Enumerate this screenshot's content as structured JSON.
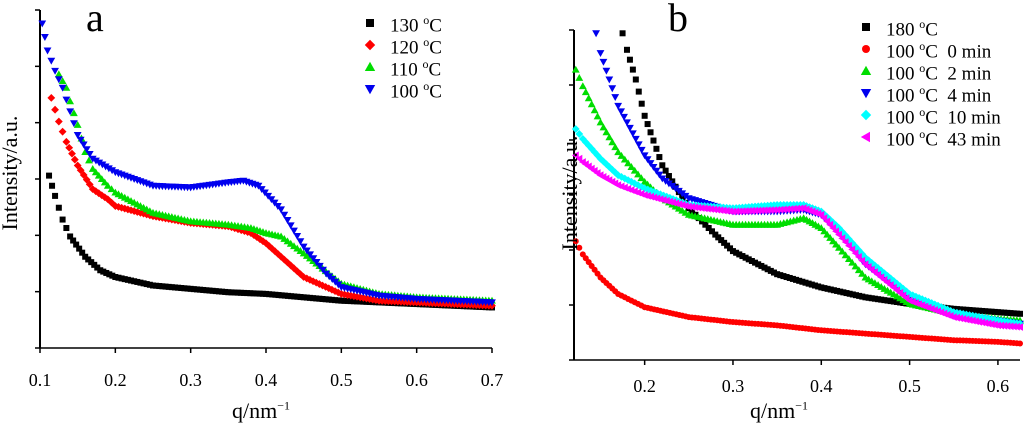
{
  "chart_data": [
    {
      "panel": "a",
      "type": "scatter",
      "title": "a",
      "xlabel": "q/nm",
      "xlabel_sup": "−1",
      "ylabel": "Intensity/a.u.",
      "xlim": [
        0.1,
        0.7
      ],
      "ylim": [
        0,
        100
      ],
      "xticks": [
        "0.1",
        "0.2",
        "0.3",
        "0.4",
        "0.5",
        "0.6",
        "0.7"
      ],
      "xtick_values": [
        0.1,
        0.2,
        0.3,
        0.4,
        0.5,
        0.6,
        0.7
      ],
      "legend_position": "top-right",
      "series": [
        {
          "name": "130 °C",
          "legend_text": "130 ",
          "color": "#000000",
          "marker": "square",
          "points": [
            [
              0.112,
              51
            ],
            [
              0.12,
              45
            ],
            [
              0.13,
              38
            ],
            [
              0.14,
              33
            ],
            [
              0.16,
              27
            ],
            [
              0.18,
              23
            ],
            [
              0.2,
              21
            ],
            [
              0.25,
              18.5
            ],
            [
              0.3,
              17.5
            ],
            [
              0.35,
              16.5
            ],
            [
              0.4,
              16
            ],
            [
              0.45,
              15
            ],
            [
              0.5,
              14
            ],
            [
              0.55,
              13.5
            ],
            [
              0.6,
              13
            ],
            [
              0.65,
              12.5
            ],
            [
              0.7,
              12
            ]
          ]
        },
        {
          "name": "120 °C",
          "legend_text": "120 ",
          "color": "#ff0000",
          "marker": "diamond",
          "points": [
            [
              0.115,
              74
            ],
            [
              0.125,
              67
            ],
            [
              0.135,
              61
            ],
            [
              0.15,
              54
            ],
            [
              0.17,
              47
            ],
            [
              0.19,
              44
            ],
            [
              0.2,
              42
            ],
            [
              0.25,
              39
            ],
            [
              0.3,
              37
            ],
            [
              0.35,
              36
            ],
            [
              0.38,
              34
            ],
            [
              0.4,
              31
            ],
            [
              0.42,
              27
            ],
            [
              0.45,
              21
            ],
            [
              0.5,
              16
            ],
            [
              0.55,
              14
            ],
            [
              0.6,
              13.5
            ],
            [
              0.65,
              13
            ],
            [
              0.7,
              12.5
            ]
          ]
        },
        {
          "name": "110 °C",
          "legend_text": "110 ",
          "color": "#00dd00",
          "marker": "triangle-up",
          "points": [
            [
              0.125,
              81
            ],
            [
              0.135,
              77
            ],
            [
              0.14,
              73
            ],
            [
              0.15,
              66
            ],
            [
              0.16,
              58
            ],
            [
              0.17,
              53
            ],
            [
              0.19,
              48
            ],
            [
              0.2,
              46
            ],
            [
              0.25,
              40
            ],
            [
              0.3,
              37.5
            ],
            [
              0.35,
              36.5
            ],
            [
              0.38,
              35.5
            ],
            [
              0.4,
              34
            ],
            [
              0.42,
              33
            ],
            [
              0.45,
              28
            ],
            [
              0.5,
              19
            ],
            [
              0.55,
              16
            ],
            [
              0.6,
              15
            ],
            [
              0.65,
              14.5
            ],
            [
              0.7,
              14
            ]
          ]
        },
        {
          "name": "100 °C",
          "legend_text": "100 ",
          "color": "#0000ee",
          "marker": "triangle-down",
          "points": [
            [
              0.103,
              96
            ],
            [
              0.11,
              88
            ],
            [
              0.12,
              82
            ],
            [
              0.13,
              77
            ],
            [
              0.14,
              70
            ],
            [
              0.15,
              63
            ],
            [
              0.17,
              56
            ],
            [
              0.2,
              52
            ],
            [
              0.25,
              48
            ],
            [
              0.3,
              47.5
            ],
            [
              0.35,
              49
            ],
            [
              0.37,
              49.5
            ],
            [
              0.39,
              48
            ],
            [
              0.42,
              41
            ],
            [
              0.45,
              30
            ],
            [
              0.48,
              22
            ],
            [
              0.5,
              18
            ],
            [
              0.55,
              15.5
            ],
            [
              0.6,
              14.5
            ],
            [
              0.65,
              14
            ],
            [
              0.7,
              13.5
            ]
          ]
        }
      ]
    },
    {
      "panel": "b",
      "type": "scatter",
      "title": "b",
      "xlabel": "q/nm",
      "xlabel_sup": "−1",
      "ylabel": "Intensity/a.u.",
      "xlim": [
        0.12,
        0.625
      ],
      "ylim": [
        0,
        100
      ],
      "xticks": [
        "0.2",
        "0.3",
        "0.4",
        "0.5",
        "0.6"
      ],
      "xtick_values": [
        0.2,
        0.3,
        0.4,
        0.5,
        0.6
      ],
      "legend_position": "top-right",
      "series": [
        {
          "name": "180 °C",
          "legend_text": "180 ",
          "legend_suffix": "",
          "color": "#000000",
          "marker": "square",
          "points": [
            [
              0.175,
              99
            ],
            [
              0.18,
              94
            ],
            [
              0.19,
              85
            ],
            [
              0.2,
              74
            ],
            [
              0.22,
              59
            ],
            [
              0.25,
              46
            ],
            [
              0.28,
              38
            ],
            [
              0.3,
              33
            ],
            [
              0.35,
              26
            ],
            [
              0.4,
              22
            ],
            [
              0.45,
              19
            ],
            [
              0.5,
              17
            ],
            [
              0.55,
              15.5
            ],
            [
              0.6,
              14.5
            ],
            [
              0.625,
              14
            ]
          ]
        },
        {
          "name": "100 °C 0 min",
          "legend_text": "100 ",
          "legend_suffix": "  0 min",
          "color": "#ff0000",
          "marker": "circle",
          "points": [
            [
              0.122,
              36
            ],
            [
              0.13,
              32
            ],
            [
              0.15,
              25
            ],
            [
              0.17,
              20
            ],
            [
              0.2,
              16
            ],
            [
              0.25,
              13
            ],
            [
              0.3,
              11.5
            ],
            [
              0.35,
              10.5
            ],
            [
              0.4,
              9
            ],
            [
              0.45,
              8
            ],
            [
              0.5,
              7
            ],
            [
              0.55,
              6
            ],
            [
              0.6,
              5.5
            ],
            [
              0.625,
              5
            ]
          ]
        },
        {
          "name": "100 °C 2 min",
          "legend_text": "100 ",
          "legend_suffix": "  2 min",
          "color": "#00dd00",
          "marker": "triangle-up",
          "points": [
            [
              0.122,
              88
            ],
            [
              0.13,
              83
            ],
            [
              0.15,
              72
            ],
            [
              0.17,
              63
            ],
            [
              0.2,
              54
            ],
            [
              0.22,
              49
            ],
            [
              0.25,
              44
            ],
            [
              0.3,
              41
            ],
            [
              0.35,
              41
            ],
            [
              0.38,
              43
            ],
            [
              0.4,
              40
            ],
            [
              0.42,
              34
            ],
            [
              0.45,
              25
            ],
            [
              0.5,
              17
            ],
            [
              0.55,
              14
            ],
            [
              0.6,
              12.5
            ],
            [
              0.625,
              12
            ]
          ]
        },
        {
          "name": "100 °C 4 min",
          "legend_text": "100 ",
          "legend_suffix": "  4 min",
          "color": "#0000ee",
          "marker": "triangle-down",
          "points": [
            [
              0.145,
              99
            ],
            [
              0.15,
              93
            ],
            [
              0.16,
              85
            ],
            [
              0.17,
              77
            ],
            [
              0.19,
              67
            ],
            [
              0.2,
              62
            ],
            [
              0.22,
              55
            ],
            [
              0.25,
              49
            ],
            [
              0.3,
              45
            ],
            [
              0.35,
              45
            ],
            [
              0.38,
              45.5
            ],
            [
              0.4,
              44
            ],
            [
              0.42,
              39
            ],
            [
              0.45,
              29
            ],
            [
              0.5,
              19
            ],
            [
              0.55,
              14
            ],
            [
              0.6,
              12
            ],
            [
              0.625,
              11
            ]
          ]
        },
        {
          "name": "100 °C 10 min",
          "legend_text": "100 ",
          "legend_suffix": "  10 min",
          "color": "#00ffff",
          "marker": "diamond",
          "points": [
            [
              0.122,
              70
            ],
            [
              0.13,
              67
            ],
            [
              0.15,
              61
            ],
            [
              0.17,
              56
            ],
            [
              0.2,
              52
            ],
            [
              0.25,
              47
            ],
            [
              0.3,
              46
            ],
            [
              0.35,
              47
            ],
            [
              0.38,
              47
            ],
            [
              0.4,
              45
            ],
            [
              0.42,
              40
            ],
            [
              0.45,
              31
            ],
            [
              0.5,
              20
            ],
            [
              0.55,
              14.5
            ],
            [
              0.6,
              12
            ],
            [
              0.625,
              11
            ]
          ]
        },
        {
          "name": "100 °C 43 min",
          "legend_text": "100 ",
          "legend_suffix": "  43 min",
          "color": "#ff00ff",
          "marker": "triangle-left",
          "points": [
            [
              0.122,
              62
            ],
            [
              0.13,
              60
            ],
            [
              0.15,
              56
            ],
            [
              0.17,
              53
            ],
            [
              0.2,
              50
            ],
            [
              0.25,
              46.5
            ],
            [
              0.3,
              45
            ],
            [
              0.35,
              45.5
            ],
            [
              0.38,
              46
            ],
            [
              0.4,
              44
            ],
            [
              0.42,
              38
            ],
            [
              0.45,
              29
            ],
            [
              0.5,
              18
            ],
            [
              0.55,
              13
            ],
            [
              0.6,
              10.5
            ],
            [
              0.625,
              10
            ]
          ]
        }
      ]
    }
  ],
  "degree_symbol": "o",
  "unit": "C"
}
